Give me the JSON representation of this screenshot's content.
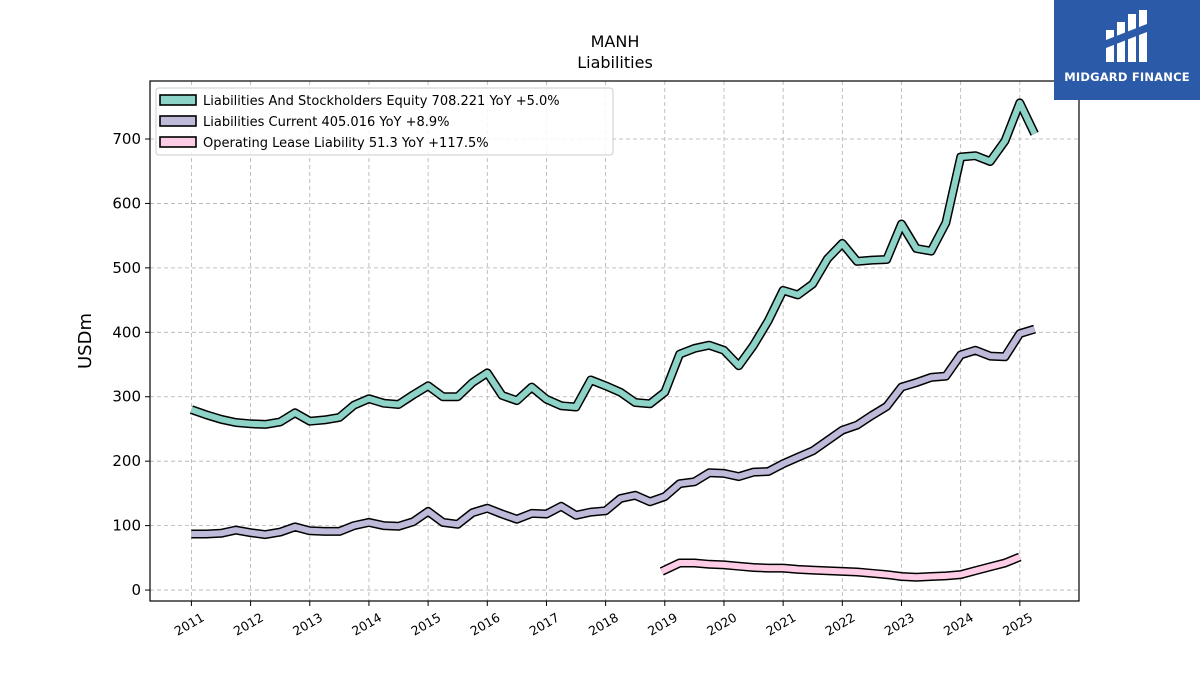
{
  "brand": {
    "name": "MIDGARD FINANCE",
    "color": "#2b5aa8"
  },
  "chart_data": {
    "type": "line",
    "title": "MANH",
    "subtitle": "Liabilities",
    "xlabel": "",
    "ylabel": "USDm",
    "ylim": [
      -17,
      790
    ],
    "xlim": [
      2010.3,
      2026.0
    ],
    "y_ticks": [
      0,
      100,
      200,
      300,
      400,
      500,
      600,
      700
    ],
    "x_ticks": [
      "2011",
      "2012",
      "2013",
      "2014",
      "2015",
      "2016",
      "2017",
      "2018",
      "2019",
      "2020",
      "2021",
      "2022",
      "2023",
      "2024",
      "2025"
    ],
    "grid": true,
    "legend_position": "top-left",
    "series": [
      {
        "name": "Liabilities And Stockholders Equity",
        "legend_label": "Liabilities And Stockholders Equity  708.221 YoY +5.0%",
        "color": "#8dd3c7",
        "x": [
          2011.0,
          2011.25,
          2011.5,
          2011.75,
          2012.0,
          2012.25,
          2012.5,
          2012.75,
          2013.0,
          2013.25,
          2013.5,
          2013.75,
          2014.0,
          2014.25,
          2014.5,
          2014.75,
          2015.0,
          2015.25,
          2015.5,
          2015.75,
          2016.0,
          2016.25,
          2016.5,
          2016.75,
          2017.0,
          2017.25,
          2017.5,
          2017.75,
          2018.0,
          2018.25,
          2018.5,
          2018.75,
          2019.0,
          2019.25,
          2019.5,
          2019.75,
          2020.0,
          2020.25,
          2020.5,
          2020.75,
          2021.0,
          2021.25,
          2021.5,
          2021.75,
          2022.0,
          2022.25,
          2022.5,
          2022.75,
          2023.0,
          2023.25,
          2023.5,
          2023.75,
          2024.0,
          2024.25,
          2024.5,
          2024.75,
          2025.0,
          2025.25
        ],
        "values": [
          280,
          272,
          265,
          260,
          258,
          257,
          261,
          275,
          262,
          264,
          268,
          287,
          297,
          290,
          288,
          303,
          317,
          300,
          300,
          322,
          337,
          302,
          294,
          315,
          296,
          286,
          284,
          326,
          317,
          307,
          291,
          289,
          307,
          366,
          375,
          380,
          372,
          348,
          380,
          418,
          465,
          458,
          475,
          514,
          538,
          510,
          512,
          513,
          568,
          530,
          526,
          570,
          672,
          674,
          665,
          697,
          756,
          708
        ]
      },
      {
        "name": "Liabilities Current",
        "legend_label": "Liabilities Current  405.016 YoY +8.9%",
        "color": "#bebada",
        "x": [
          2011.0,
          2011.25,
          2011.5,
          2011.75,
          2012.0,
          2012.25,
          2012.5,
          2012.75,
          2013.0,
          2013.25,
          2013.5,
          2013.75,
          2014.0,
          2014.25,
          2014.5,
          2014.75,
          2015.0,
          2015.25,
          2015.5,
          2015.75,
          2016.0,
          2016.25,
          2016.5,
          2016.75,
          2017.0,
          2017.25,
          2017.5,
          2017.75,
          2018.0,
          2018.25,
          2018.5,
          2018.75,
          2019.0,
          2019.25,
          2019.5,
          2019.75,
          2020.0,
          2020.25,
          2020.5,
          2020.75,
          2021.0,
          2021.25,
          2021.5,
          2021.75,
          2022.0,
          2022.25,
          2022.5,
          2022.75,
          2023.0,
          2023.25,
          2023.5,
          2023.75,
          2024.0,
          2024.25,
          2024.5,
          2024.75,
          2025.0,
          2025.25
        ],
        "values": [
          87,
          87,
          88,
          93,
          89,
          86,
          90,
          98,
          92,
          91,
          91,
          100,
          105,
          100,
          99,
          106,
          122,
          105,
          102,
          120,
          127,
          118,
          110,
          119,
          118,
          130,
          116,
          121,
          123,
          142,
          147,
          137,
          145,
          165,
          168,
          182,
          181,
          176,
          183,
          184,
          196,
          206,
          216,
          232,
          248,
          256,
          271,
          285,
          315,
          322,
          330,
          332,
          365,
          372,
          363,
          362,
          398,
          405
        ]
      },
      {
        "name": "Operating Lease Liability",
        "legend_label": "Operating Lease Liability  51.3 YoY +117.5%",
        "color": "#fccde5",
        "x": [
          2018.95,
          2019.25,
          2019.5,
          2019.75,
          2020.0,
          2020.25,
          2020.5,
          2020.75,
          2021.0,
          2021.25,
          2021.5,
          2021.75,
          2022.0,
          2022.25,
          2022.5,
          2022.75,
          2023.0,
          2023.25,
          2023.5,
          2023.75,
          2024.0,
          2024.25,
          2024.5,
          2024.75,
          2025.0
        ],
        "values": [
          29,
          42,
          42,
          40,
          39,
          37,
          35,
          34,
          34,
          32,
          31,
          30,
          29,
          28,
          26,
          24,
          21,
          20,
          21,
          22,
          24,
          30,
          36,
          42,
          51.3
        ]
      }
    ]
  }
}
